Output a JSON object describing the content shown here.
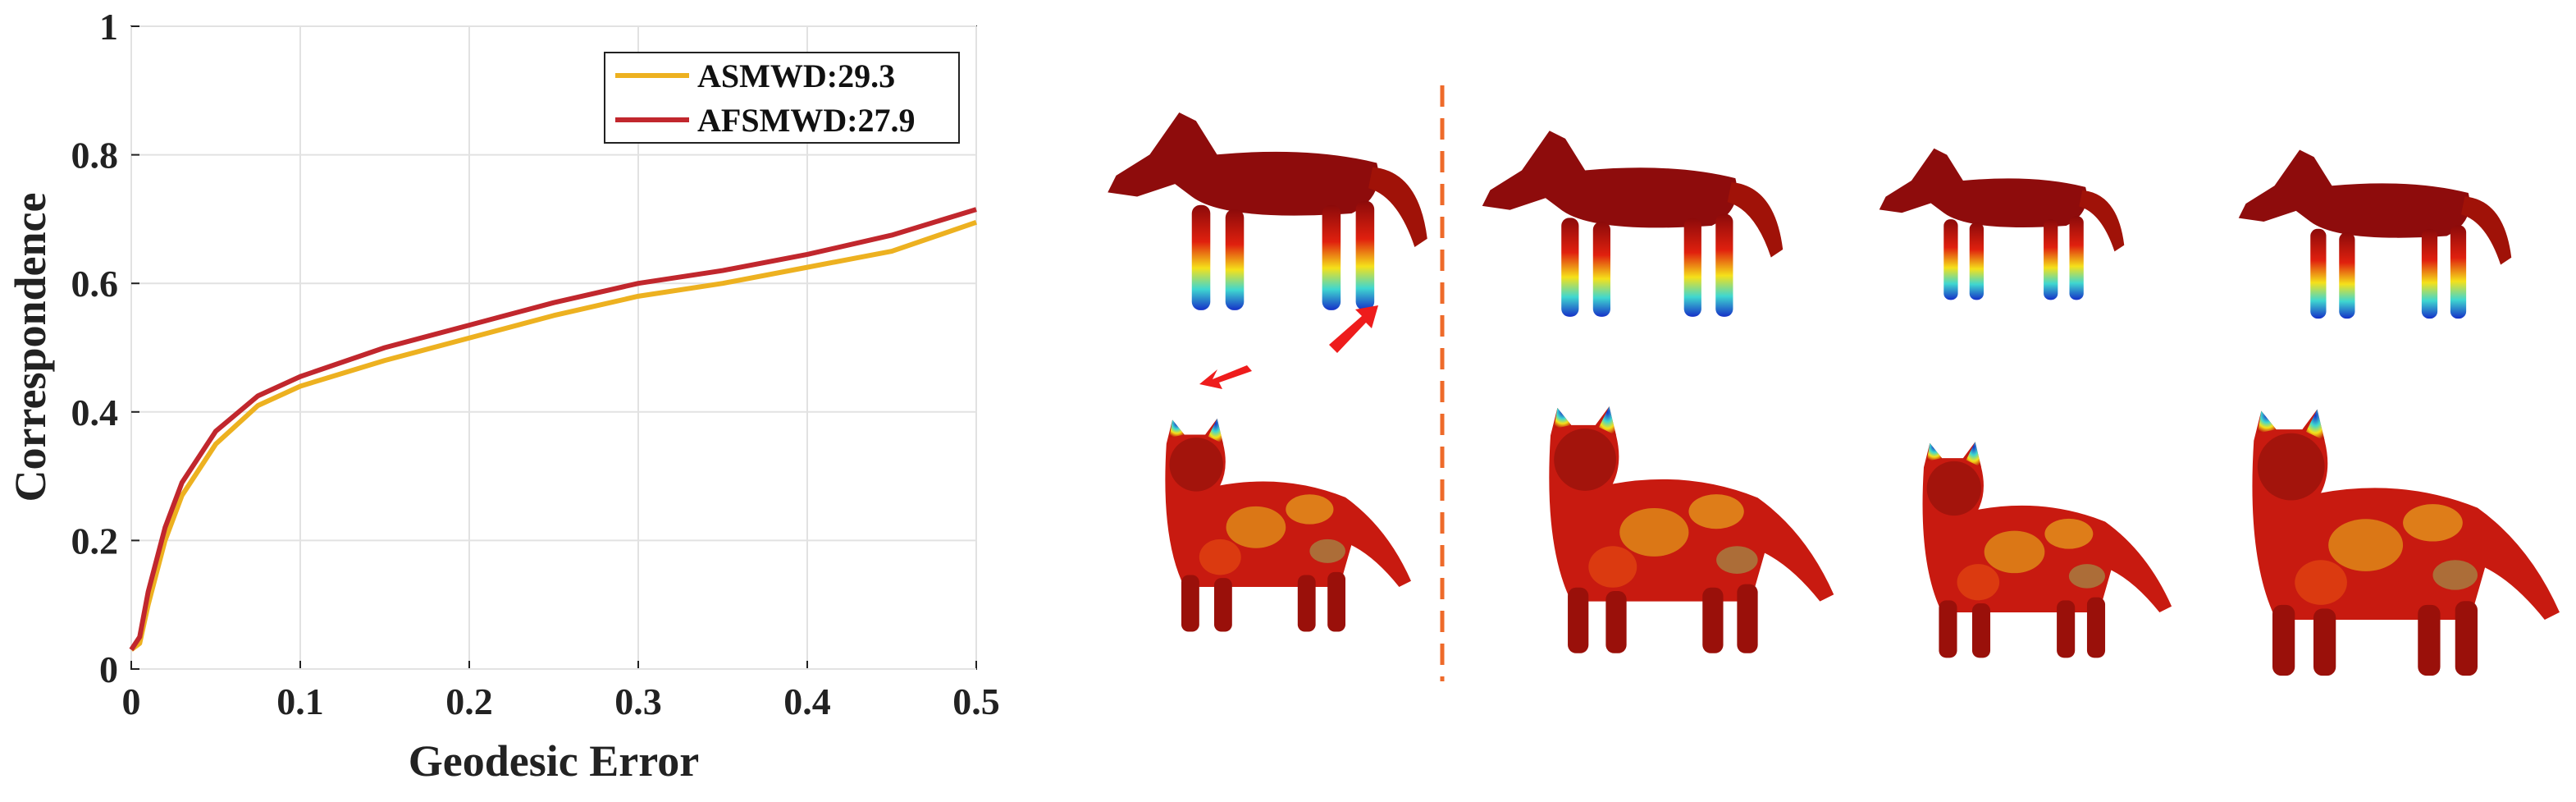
{
  "chart_data": {
    "type": "line",
    "xlabel": "Geodesic Error",
    "ylabel": "Correspondence",
    "x": [
      0,
      0.005,
      0.01,
      0.02,
      0.03,
      0.05,
      0.075,
      0.1,
      0.15,
      0.2,
      0.25,
      0.3,
      0.35,
      0.4,
      0.45,
      0.5
    ],
    "series": [
      {
        "name": "ASMWD:29.3",
        "color": "#edb120",
        "values": [
          0.03,
          0.04,
          0.1,
          0.2,
          0.27,
          0.35,
          0.41,
          0.44,
          0.48,
          0.515,
          0.55,
          0.58,
          0.6,
          0.625,
          0.65,
          0.695
        ]
      },
      {
        "name": "AFSMWD:27.9",
        "color": "#c1272d",
        "values": [
          0.03,
          0.05,
          0.12,
          0.22,
          0.29,
          0.37,
          0.425,
          0.455,
          0.5,
          0.535,
          0.57,
          0.6,
          0.62,
          0.645,
          0.675,
          0.715
        ]
      }
    ],
    "xlim": [
      0,
      0.5
    ],
    "xticks": [
      0,
      0.1,
      0.2,
      0.3,
      0.4,
      0.5
    ],
    "ylim": [
      0,
      1
    ],
    "yticks": [
      0,
      0.2,
      0.4,
      0.6,
      0.8,
      1
    ],
    "grid": true,
    "legend": "upper right"
  }
}
